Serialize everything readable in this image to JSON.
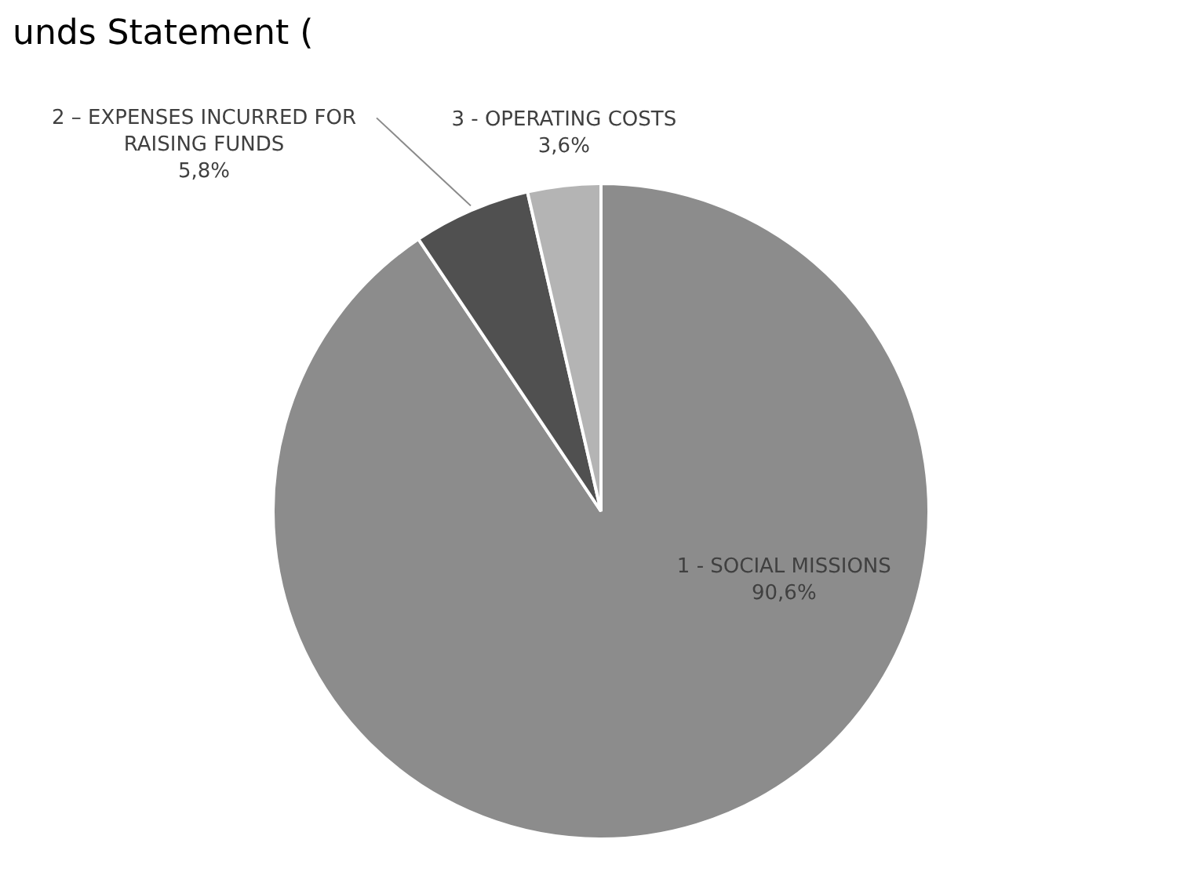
{
  "chart_data": {
    "type": "pie",
    "title": "unds Statement (",
    "categories": [
      "1 - SOCIAL MISSIONS",
      "2 – EXPENSES INCURRED FOR RAISING FUNDS",
      "3 - OPERATING COSTS"
    ],
    "values": [
      90.6,
      5.8,
      3.6
    ],
    "colors": [
      "#8c8c8c",
      "#505050",
      "#b4b4b4"
    ],
    "value_labels": [
      "90,6%",
      "5,8%",
      "3,6%"
    ],
    "legend": false
  }
}
